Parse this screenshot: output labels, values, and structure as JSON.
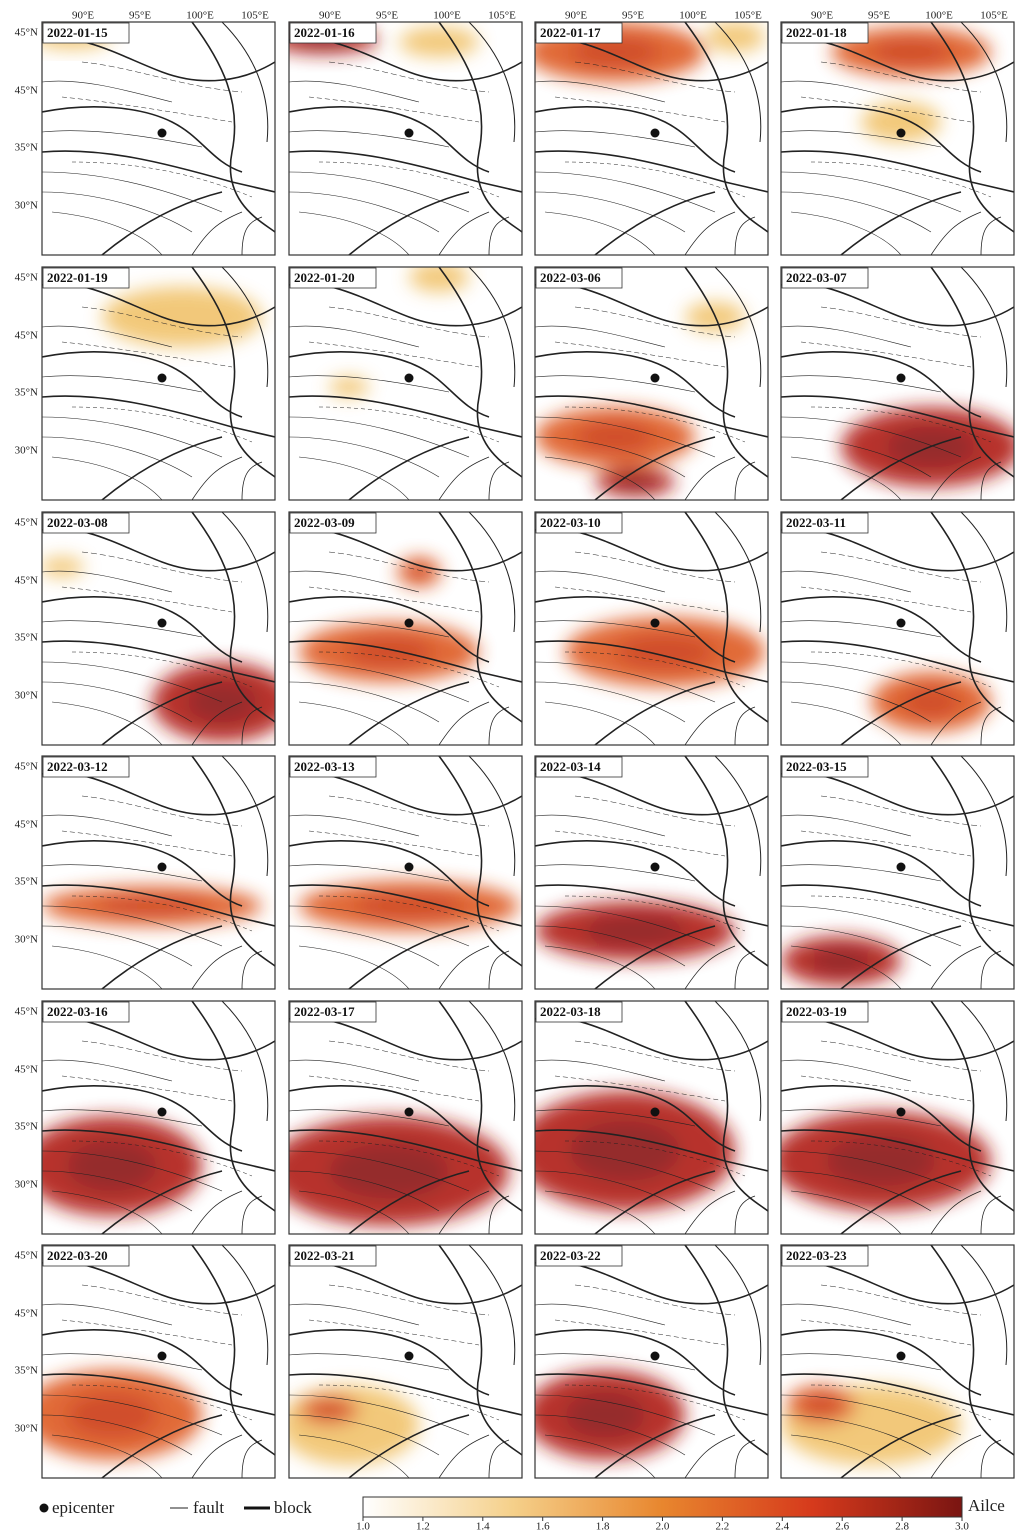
{
  "map": {
    "lon_labels": [
      "90°E",
      "95°E",
      "100°E",
      "105°E"
    ],
    "lat_labels": [
      "45°N",
      "45°N",
      "35°N",
      "30°N"
    ],
    "panels": [
      "2022-01-15",
      "2022-01-16",
      "2022-01-17",
      "2022-01-18",
      "2022-01-19",
      "2022-01-20",
      "2022-03-06",
      "2022-03-07",
      "2022-03-08",
      "2022-03-09",
      "2022-03-10",
      "2022-03-11",
      "2022-03-12",
      "2022-03-13",
      "2022-03-14",
      "2022-03-15",
      "2022-03-16",
      "2022-03-17",
      "2022-03-18",
      "2022-03-19",
      "2022-03-20",
      "2022-03-21",
      "2022-03-22",
      "2022-03-23"
    ],
    "legend": {
      "epicenter": "epicenter",
      "fault": "fault",
      "block": "block"
    },
    "colorbar": {
      "label": "Ailce",
      "range": [
        1.0,
        3.0
      ],
      "colors": [
        "#ffffff",
        "#f5d08a",
        "#e8862e",
        "#d63a1c",
        "#7a1512"
      ],
      "ticks": [
        {
          "value": 1.0,
          "label": "1.0"
        },
        {
          "value": 1.2,
          "label": "1.2"
        },
        {
          "value": 1.4,
          "label": "1.4"
        },
        {
          "value": 1.6,
          "label": "1.6"
        },
        {
          "value": 1.8,
          "label": "1.8"
        },
        {
          "value": 2.0,
          "label": "2.0"
        },
        {
          "value": 2.2,
          "label": "2.2"
        },
        {
          "value": 2.4,
          "label": "2.4"
        },
        {
          "value": 2.6,
          "label": "2.6"
        },
        {
          "value": 2.8,
          "label": "2.8"
        },
        {
          "value": 3.0,
          "label": "3.0"
        }
      ]
    }
  }
}
